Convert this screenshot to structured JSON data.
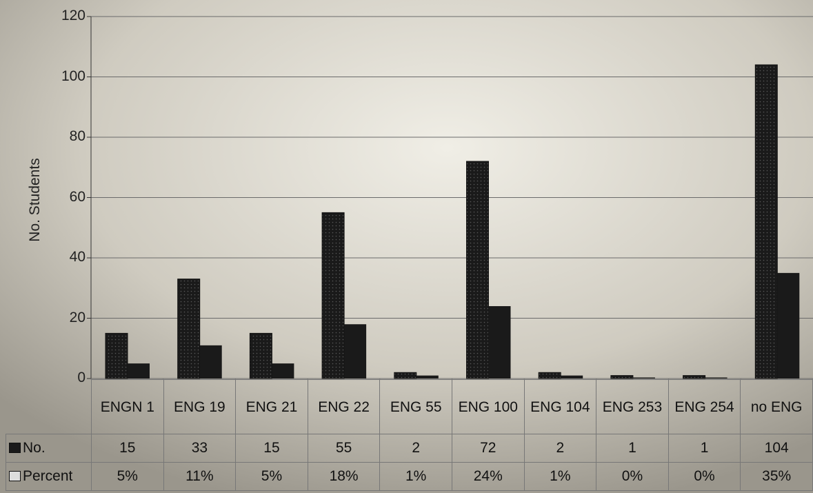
{
  "chart_data": {
    "type": "bar",
    "title": "",
    "xlabel": "",
    "ylabel": "No. Students",
    "ylim": [
      0,
      120
    ],
    "yticks": [
      "0",
      "20",
      "40",
      "60",
      "80",
      "100",
      "120"
    ],
    "grid": true,
    "categories": [
      "ENGN 1",
      "ENG 19",
      "ENG 21",
      "ENG 22",
      "ENG 55",
      "ENG 100",
      "ENG 104",
      "ENG 253",
      "ENG 254",
      "no ENG"
    ],
    "series": [
      {
        "name": "No.",
        "values": [
          15,
          33,
          15,
          55,
          2,
          72,
          2,
          1,
          1,
          104
        ]
      },
      {
        "name": "Percent",
        "values": [
          5,
          11,
          5,
          18,
          1,
          24,
          1,
          0,
          0,
          35
        ]
      }
    ],
    "table_rows": [
      {
        "label": "No.",
        "cells": [
          "15",
          "33",
          "15",
          "55",
          "2",
          "72",
          "2",
          "1",
          "1",
          "104"
        ]
      },
      {
        "label": "Percent",
        "cells": [
          "5%",
          "11%",
          "5%",
          "18%",
          "1%",
          "24%",
          "1%",
          "0%",
          "0%",
          "35%"
        ]
      }
    ],
    "colors": {
      "bar": "#1a1a1a",
      "grid": "#6a6a6a",
      "background": "#c4c0b4"
    }
  }
}
